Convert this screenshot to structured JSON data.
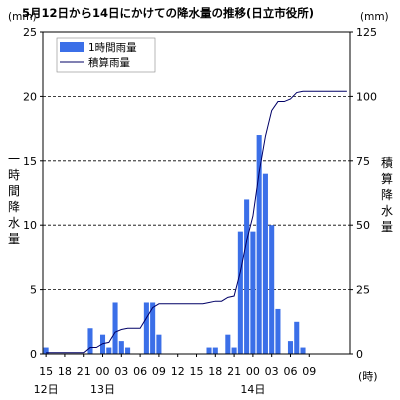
{
  "chart_data": {
    "type": "bar",
    "title": "5月12日から14日にかけての降水量の推移(日立市役所)",
    "left_unit": "(mm)",
    "right_unit": "(mm)",
    "x_unit": "(時)",
    "left_axis_label": [
      "一",
      "時",
      "間",
      "降",
      "水",
      "量"
    ],
    "right_axis_label": [
      "積",
      "算",
      "降",
      "水",
      "量"
    ],
    "legend": {
      "bar": "1時間雨量",
      "line": "積算雨量"
    },
    "colors": {
      "bar": "#3b6fe8",
      "line": "#000066"
    },
    "y_left_ticks": [
      "0",
      "5",
      "10",
      "15",
      "20",
      "25"
    ],
    "y_right_ticks": [
      "0",
      "25",
      "50",
      "75",
      "100",
      "125"
    ],
    "y_left_lim": [
      0,
      25
    ],
    "y_right_lim": [
      0,
      125
    ],
    "x_tick_labels": [
      "15",
      "18",
      "21",
      "00",
      "03",
      "06",
      "09",
      "12",
      "15",
      "18",
      "21",
      "00",
      "03",
      "06",
      "09"
    ],
    "date_labels": [
      "12日",
      "13日",
      "14日"
    ],
    "hourly_start": "12日 15時",
    "series": [
      {
        "name": "1時間雨量",
        "axis": "left",
        "values": [
          0.5,
          0,
          0,
          0,
          0,
          0,
          0,
          2,
          0,
          1.5,
          0.5,
          4,
          1,
          0.5,
          0,
          0,
          4,
          4,
          1.5,
          0,
          0,
          0,
          0,
          0,
          0,
          0,
          0.5,
          0.5,
          0,
          1.5,
          0.5,
          9.5,
          12,
          9.5,
          17,
          14,
          10,
          3.5,
          0,
          1,
          2.5,
          0.5,
          0,
          0,
          0,
          0,
          0,
          0,
          0
        ]
      },
      {
        "name": "積算雨量",
        "axis": "right",
        "values": [
          0.5,
          0.5,
          0.5,
          0.5,
          0.5,
          0.5,
          0.5,
          2.5,
          2.5,
          4,
          4.5,
          8.5,
          9.5,
          10,
          10,
          10,
          14,
          18,
          19.5,
          19.5,
          19.5,
          19.5,
          19.5,
          19.5,
          19.5,
          19.5,
          20,
          20.5,
          20.5,
          22,
          22.5,
          32,
          44,
          53.5,
          70.5,
          84.5,
          94.5,
          98,
          98,
          99,
          101.5,
          102,
          102,
          102,
          102,
          102,
          102,
          102,
          102
        ]
      }
    ],
    "grid": "horizontal-dashed"
  }
}
